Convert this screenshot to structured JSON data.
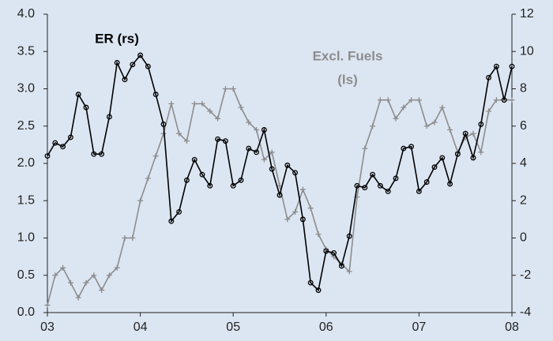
{
  "chart_data": {
    "type": "line",
    "categories": [
      "03",
      null,
      null,
      null,
      null,
      null,
      null,
      null,
      null,
      null,
      null,
      null,
      "04",
      null,
      null,
      null,
      null,
      null,
      null,
      null,
      null,
      null,
      null,
      null,
      "05",
      null,
      null,
      null,
      null,
      null,
      null,
      null,
      null,
      null,
      null,
      null,
      "06",
      null,
      null,
      null,
      null,
      null,
      null,
      null,
      null,
      null,
      null,
      null,
      "07",
      null,
      null,
      null,
      null,
      null,
      null,
      null,
      null,
      null,
      null,
      null,
      "08"
    ],
    "series": [
      {
        "name": "Excl. Fuels",
        "color": "#8c8c8c",
        "axis": "y",
        "marker": "plus",
        "values": [
          0.1,
          0.5,
          0.6,
          0.4,
          0.2,
          0.4,
          0.5,
          0.3,
          0.5,
          0.6,
          1.0,
          1.0,
          1.5,
          1.8,
          2.1,
          2.4,
          2.8,
          2.4,
          2.3,
          2.8,
          2.8,
          2.7,
          2.6,
          3.0,
          3.0,
          2.75,
          2.55,
          2.45,
          2.05,
          2.15,
          1.7,
          1.25,
          1.35,
          1.65,
          1.4,
          1.05,
          0.85,
          0.75,
          0.65,
          0.55,
          1.55,
          2.2,
          2.5,
          2.85,
          2.85,
          2.6,
          2.75,
          2.85,
          2.85,
          2.5,
          2.55,
          2.75,
          2.45,
          2.15,
          2.35,
          2.4,
          2.15,
          2.7,
          2.85,
          2.85,
          2.85
        ]
      },
      {
        "name": "ER (rs)",
        "color": "#000000",
        "axis": "y2",
        "marker": "circle",
        "values": [
          4.4,
          5.1,
          4.9,
          5.4,
          7.7,
          7.0,
          4.5,
          4.5,
          6.5,
          9.4,
          8.5,
          9.3,
          9.8,
          9.2,
          7.7,
          6.1,
          0.9,
          1.4,
          3.1,
          4.2,
          3.4,
          2.8,
          5.3,
          5.2,
          2.8,
          3.1,
          4.8,
          4.6,
          5.8,
          3.7,
          2.3,
          3.9,
          3.5,
          1.0,
          -2.4,
          -2.8,
          -0.7,
          -0.8,
          -1.5,
          0.1,
          2.8,
          2.7,
          3.4,
          2.8,
          2.5,
          3.2,
          4.8,
          4.9,
          2.5,
          3.0,
          3.8,
          4.3,
          2.9,
          4.5,
          5.6,
          4.3,
          6.1,
          8.6,
          9.2,
          7.4,
          9.2
        ]
      }
    ],
    "annotations": [
      {
        "text": "(ls)"
      }
    ],
    "ylim": [
      0,
      4
    ],
    "yticks": [
      {
        "value": 0,
        "label": "0.0"
      },
      {
        "value": 0.5,
        "label": "0.5"
      },
      {
        "value": 1,
        "label": "1.0"
      },
      {
        "value": 1.5,
        "label": "1.5"
      },
      {
        "value": 2,
        "label": "2.0"
      },
      {
        "value": 2.5,
        "label": "2.5"
      },
      {
        "value": 3,
        "label": "3.0"
      },
      {
        "value": 3.5,
        "label": "3.5"
      },
      {
        "value": 4,
        "label": "4.0"
      }
    ],
    "y2lim": [
      -4,
      12
    ],
    "y2ticks": [
      -4,
      -2,
      0,
      2,
      4,
      6,
      8,
      10,
      12
    ],
    "grid": false
  }
}
